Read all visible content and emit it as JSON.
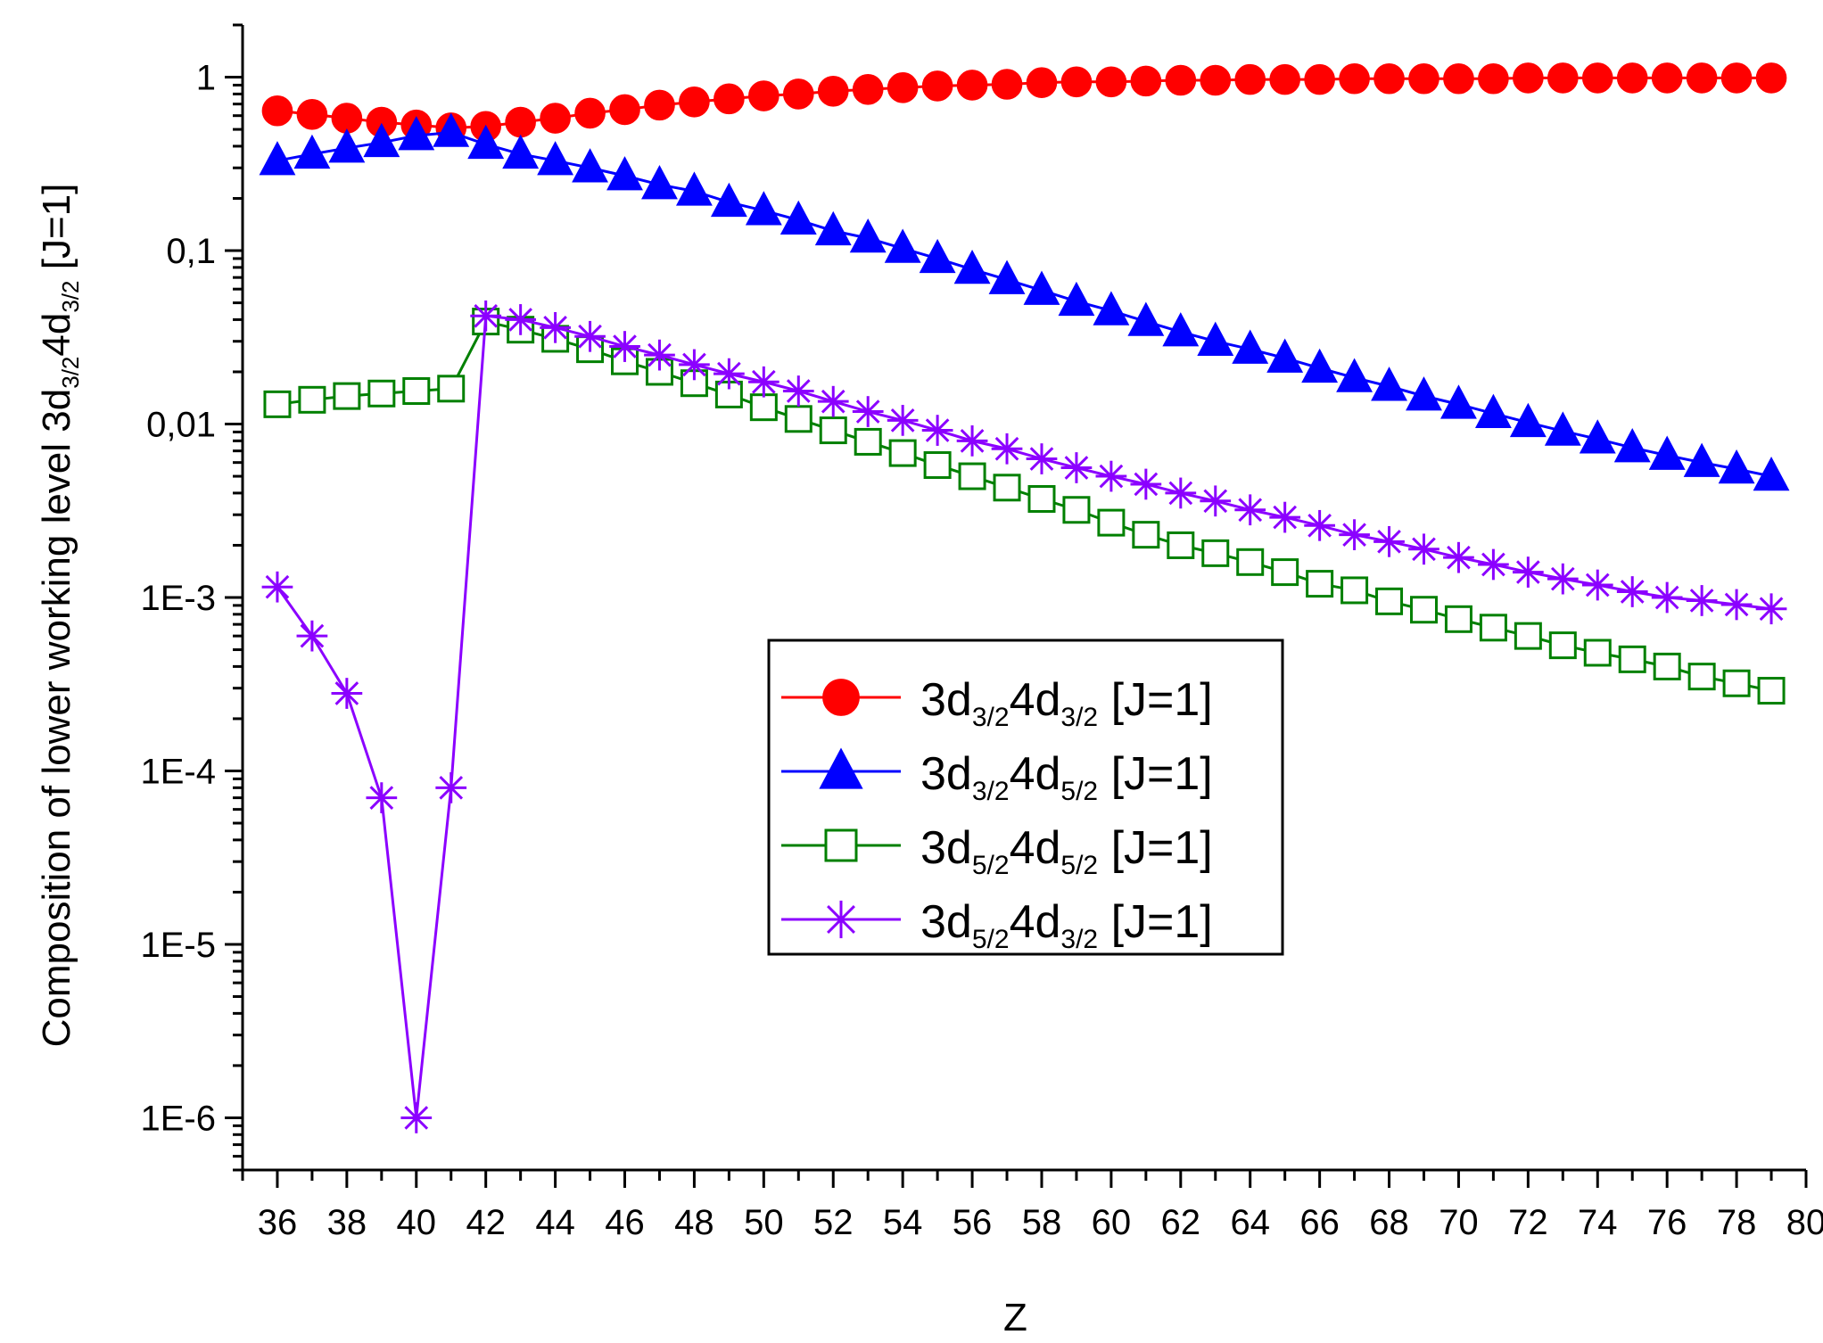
{
  "chart_data": {
    "type": "line",
    "xlabel": "Z",
    "ylabel": {
      "parts": [
        {
          "text": "Composition of lower working level 3d",
          "sub": false
        },
        {
          "text": "3/2",
          "sub": true
        },
        {
          "text": "4d",
          "sub": false
        },
        {
          "text": "3/2",
          "sub": true
        },
        {
          "text": " [J=1]",
          "sub": false
        }
      ]
    },
    "xlim": [
      35,
      80
    ],
    "ylim": [
      5e-07,
      2
    ],
    "yscale": "log",
    "grid": false,
    "legend_position": "center-right",
    "x_ticks": [
      36,
      38,
      40,
      42,
      44,
      46,
      48,
      50,
      52,
      54,
      56,
      58,
      60,
      62,
      64,
      66,
      68,
      70,
      72,
      74,
      76,
      78,
      80
    ],
    "y_ticks": [
      {
        "value": 1,
        "label": "1"
      },
      {
        "value": 0.1,
        "label": "0,1"
      },
      {
        "value": 0.01,
        "label": "0,01"
      },
      {
        "value": 0.001,
        "label": "1E-3"
      },
      {
        "value": 0.0001,
        "label": "1E-4"
      },
      {
        "value": 1e-05,
        "label": "1E-5"
      },
      {
        "value": 1e-06,
        "label": "1E-6"
      }
    ],
    "x": [
      36,
      37,
      38,
      39,
      40,
      41,
      42,
      43,
      44,
      45,
      46,
      47,
      48,
      49,
      50,
      51,
      52,
      53,
      54,
      55,
      56,
      57,
      58,
      59,
      60,
      61,
      62,
      63,
      64,
      65,
      66,
      67,
      68,
      69,
      70,
      71,
      72,
      73,
      74,
      75,
      76,
      77,
      78,
      79
    ],
    "series": [
      {
        "label_parts": [
          [
            "3d",
            false
          ],
          [
            "3/2",
            true
          ],
          [
            "4d",
            false
          ],
          [
            "3/2",
            true
          ],
          [
            " [J=1]",
            false
          ]
        ],
        "color": "#ff0000",
        "marker": "filled-circle",
        "values": [
          0.64,
          0.61,
          0.58,
          0.55,
          0.53,
          0.51,
          0.52,
          0.55,
          0.58,
          0.62,
          0.65,
          0.69,
          0.72,
          0.75,
          0.78,
          0.8,
          0.83,
          0.85,
          0.87,
          0.89,
          0.9,
          0.91,
          0.93,
          0.94,
          0.94,
          0.95,
          0.96,
          0.96,
          0.97,
          0.97,
          0.97,
          0.98,
          0.98,
          0.98,
          0.98,
          0.98,
          0.99,
          0.99,
          0.99,
          0.99,
          0.99,
          0.99,
          0.99,
          0.99
        ]
      },
      {
        "label_parts": [
          [
            "3d",
            false
          ],
          [
            "3/2",
            true
          ],
          [
            "4d",
            false
          ],
          [
            "5/2",
            true
          ],
          [
            " [J=1]",
            false
          ]
        ],
        "color": "#0000ff",
        "marker": "filled-triangle",
        "values": [
          0.33,
          0.36,
          0.39,
          0.42,
          0.46,
          0.48,
          0.41,
          0.36,
          0.33,
          0.3,
          0.27,
          0.24,
          0.22,
          0.19,
          0.17,
          0.15,
          0.13,
          0.118,
          0.103,
          0.09,
          0.078,
          0.068,
          0.059,
          0.051,
          0.045,
          0.039,
          0.034,
          0.03,
          0.027,
          0.024,
          0.021,
          0.0185,
          0.0165,
          0.0145,
          0.013,
          0.0115,
          0.0102,
          0.0091,
          0.0082,
          0.0073,
          0.0066,
          0.006,
          0.0055,
          0.005
        ]
      },
      {
        "label_parts": [
          [
            "3d",
            false
          ],
          [
            "5/2",
            true
          ],
          [
            "4d",
            false
          ],
          [
            "5/2",
            true
          ],
          [
            " [J=1]",
            false
          ]
        ],
        "color": "#008000",
        "marker": "open-square",
        "values": [
          0.013,
          0.0138,
          0.0145,
          0.015,
          0.0155,
          0.016,
          0.039,
          0.035,
          0.031,
          0.027,
          0.023,
          0.02,
          0.0172,
          0.0148,
          0.0125,
          0.0107,
          0.0092,
          0.0079,
          0.0068,
          0.0058,
          0.005,
          0.0043,
          0.0037,
          0.0032,
          0.0027,
          0.0023,
          0.002,
          0.0018,
          0.0016,
          0.0014,
          0.0012,
          0.0011,
          0.00095,
          0.00085,
          0.00075,
          0.00067,
          0.0006,
          0.00053,
          0.00048,
          0.00044,
          0.0004,
          0.00035,
          0.00032,
          0.00029
        ]
      },
      {
        "label_parts": [
          [
            "3d",
            false
          ],
          [
            "5/2",
            true
          ],
          [
            "4d",
            false
          ],
          [
            "3/2",
            true
          ],
          [
            " [J=1]",
            false
          ]
        ],
        "color": "#8b00ff",
        "marker": "asterisk",
        "values": [
          0.00115,
          0.0006,
          0.00028,
          7e-05,
          1e-06,
          8e-05,
          0.042,
          0.04,
          0.036,
          0.032,
          0.028,
          0.025,
          0.022,
          0.0195,
          0.0175,
          0.0155,
          0.0135,
          0.0118,
          0.0105,
          0.0092,
          0.008,
          0.0072,
          0.0063,
          0.0056,
          0.005,
          0.0045,
          0.004,
          0.0036,
          0.0032,
          0.0029,
          0.0026,
          0.0023,
          0.0021,
          0.0019,
          0.0017,
          0.00155,
          0.0014,
          0.00128,
          0.00118,
          0.00108,
          0.001,
          0.00096,
          0.00091,
          0.00086
        ]
      }
    ]
  }
}
